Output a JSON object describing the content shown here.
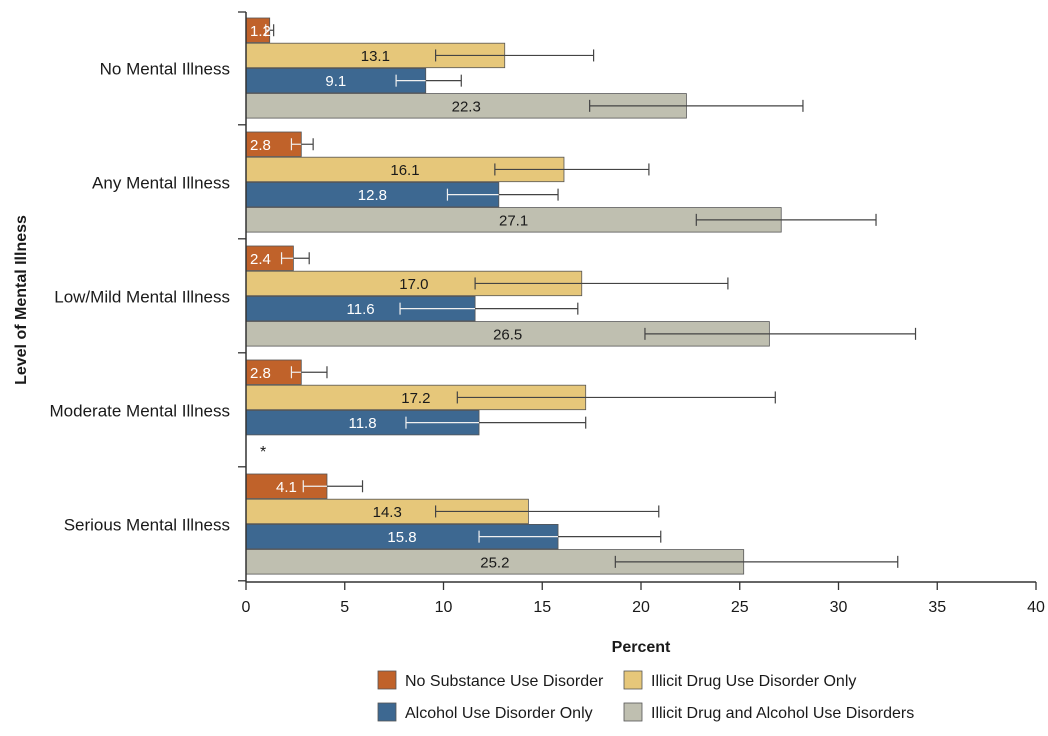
{
  "chart_data": {
    "type": "bar",
    "orientation": "horizontal",
    "categories": [
      "No Mental Illness",
      "Any Mental Illness",
      "Low/Mild Mental Illness",
      "Moderate Mental Illness",
      "Serious Mental Illness"
    ],
    "series": [
      {
        "name": "No Substance Use Disorder",
        "color": "#c0622a",
        "label_color": "#ffffff",
        "values": [
          1.2,
          2.8,
          2.4,
          2.8,
          4.1
        ],
        "labels": [
          "1.2",
          "2.8",
          "2.4",
          "2.8",
          "4.1"
        ],
        "ci_low": [
          1.0,
          2.3,
          1.8,
          2.3,
          2.9
        ],
        "ci_high": [
          1.4,
          3.4,
          3.2,
          4.1,
          5.9
        ]
      },
      {
        "name": "Illicit Drug Use Disorder Only",
        "color": "#e6c77a",
        "label_color": "#1a1a1a",
        "values": [
          13.1,
          16.1,
          17.0,
          17.2,
          14.3
        ],
        "labels": [
          "13.1",
          "16.1",
          "17.0",
          "17.2",
          "14.3"
        ],
        "ci_low": [
          9.6,
          12.6,
          11.6,
          10.7,
          9.6
        ],
        "ci_high": [
          17.6,
          20.4,
          24.4,
          26.8,
          20.9
        ]
      },
      {
        "name": "Alcohol Use Disorder Only",
        "color": "#3d6891",
        "label_color": "#ffffff",
        "values": [
          9.1,
          12.8,
          11.6,
          11.8,
          15.8
        ],
        "labels": [
          "9.1",
          "12.8",
          "11.6",
          "11.8",
          "15.8"
        ],
        "ci_low": [
          7.6,
          10.2,
          7.8,
          8.1,
          11.8
        ],
        "ci_high": [
          10.9,
          15.8,
          16.8,
          17.2,
          21.0
        ]
      },
      {
        "name": "Illicit Drug and Alcohol Use Disorders",
        "color": "#bfbfb0",
        "label_color": "#1a1a1a",
        "values": [
          22.3,
          27.1,
          26.5,
          null,
          25.2
        ],
        "labels": [
          "22.3",
          "27.1",
          "26.5",
          "*",
          "25.2"
        ],
        "ci_low": [
          17.4,
          22.8,
          20.2,
          null,
          18.7
        ],
        "ci_high": [
          28.2,
          31.9,
          33.9,
          null,
          33.0
        ]
      }
    ],
    "xlabel": "Percent",
    "ylabel": "Level of Mental Illness",
    "xlim": [
      0,
      40
    ],
    "xticks": [
      "0",
      "5",
      "10",
      "15",
      "20",
      "25",
      "30",
      "35",
      "40"
    ],
    "grid": false,
    "legend_position": "bottom"
  }
}
